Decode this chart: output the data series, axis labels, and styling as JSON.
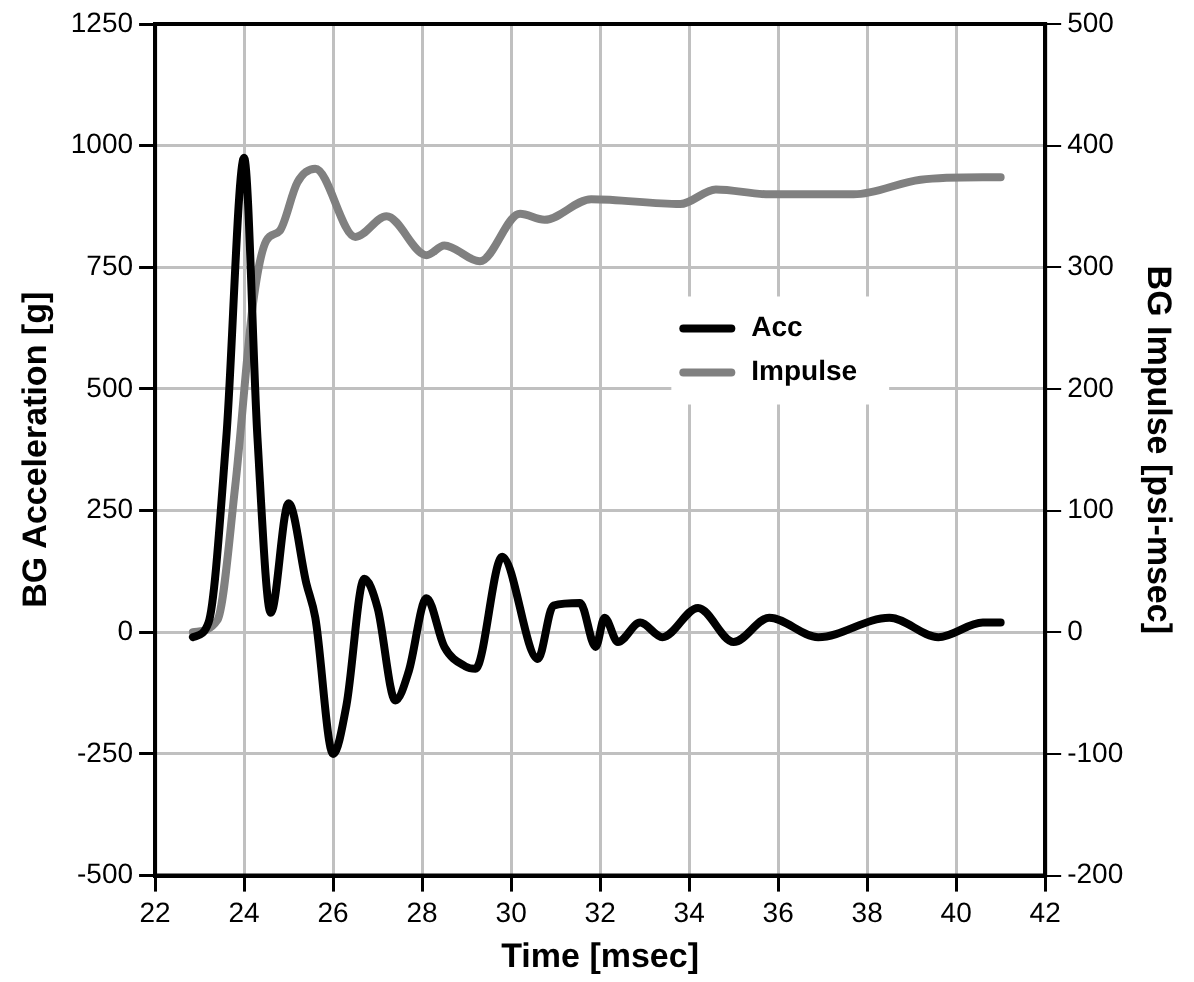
{
  "chart_data": {
    "type": "line",
    "xlabel": "Time [msec]",
    "ylabel": "BG Acceleration [g]",
    "y2label": "BG Impulse [psi-msec]",
    "xlim": [
      22,
      42
    ],
    "xticks": [
      22,
      24,
      26,
      28,
      30,
      32,
      34,
      36,
      38,
      40,
      42
    ],
    "ylim": [
      -500,
      1250
    ],
    "yticks": [
      -500,
      -250,
      0,
      250,
      500,
      750,
      1000,
      1250
    ],
    "y2lim": [
      -200,
      500
    ],
    "y2ticks": [
      -200,
      -100,
      0,
      100,
      200,
      300,
      400,
      500
    ],
    "grid": true,
    "legend": "right",
    "marker": "none",
    "line_style": "solid",
    "series": [
      {
        "name": "Acc",
        "color": "#000000",
        "x": [
          22.85,
          23.2,
          23.6,
          24.0,
          24.3,
          24.6,
          25.0,
          25.4,
          25.6,
          26.0,
          26.3,
          26.7,
          27.0,
          27.4,
          27.7,
          28.1,
          28.5,
          28.97,
          29.2,
          29.8,
          30.6,
          30.95,
          31.55,
          31.9,
          32.1,
          32.4,
          32.9,
          33.4,
          34.2,
          35.0,
          35.8,
          36.9,
          38.5,
          39.6,
          40.6,
          41.0
        ],
        "values": [
          -10,
          20,
          400,
          975,
          400,
          40,
          265,
          100,
          30,
          -250,
          -150,
          110,
          50,
          -140,
          -80,
          70,
          -30,
          -70,
          -75,
          155,
          -55,
          55,
          60,
          -30,
          30,
          -20,
          20,
          -10,
          50,
          -20,
          30,
          -10,
          30,
          -10,
          20,
          20
        ]
      },
      {
        "name": "Impulse",
        "color": "#808080",
        "axis": "y2",
        "x": [
          22.85,
          23.4,
          23.8,
          24.2,
          24.5,
          24.8,
          25.2,
          25.6,
          26.5,
          27.2,
          28.1,
          28.5,
          29.3,
          30.2,
          30.75,
          31.8,
          33.8,
          34.6,
          35.8,
          37.7,
          39.2,
          40.6,
          41.0
        ],
        "values": [
          0,
          10,
          120,
          270,
          322,
          330,
          370,
          381,
          325,
          342,
          310,
          318,
          305,
          344,
          339,
          356,
          352,
          364,
          360,
          360,
          372,
          374,
          374
        ]
      }
    ]
  }
}
